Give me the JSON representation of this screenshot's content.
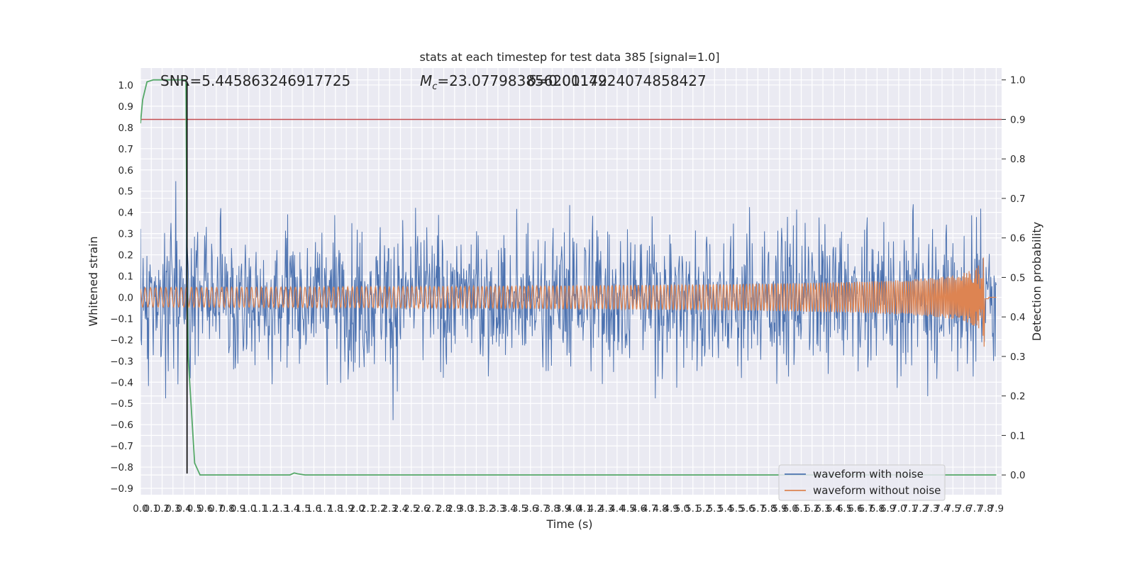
{
  "chart_data": {
    "type": "line",
    "title": "stats at each timestep for test data 385 [signal=1.0]",
    "xlabel": "Time (s)",
    "ylabel": "Whitened strain",
    "y2label": "Detection probability",
    "xlim": [
      0.0,
      7.95
    ],
    "ylim": [
      -0.93,
      1.08
    ],
    "y2lim": [
      -0.05,
      1.03
    ],
    "x_ticks": [
      "0.0",
      "0.1",
      "0.2",
      "0.3",
      "0.4",
      "0.5",
      "0.6",
      "0.7",
      "0.8",
      "0.9",
      "1.0",
      "1.1",
      "1.2",
      "1.3",
      "1.4",
      "1.5",
      "1.6",
      "1.7",
      "1.8",
      "1.9",
      "2.0",
      "2.1",
      "2.2",
      "2.3",
      "2.4",
      "2.5",
      "2.6",
      "2.7",
      "2.8",
      "2.9",
      "3.0",
      "3.1",
      "3.2",
      "3.3",
      "3.4",
      "3.5",
      "3.6",
      "3.7",
      "3.8",
      "3.9",
      "4.0",
      "4.1",
      "4.2",
      "4.3",
      "4.4",
      "4.5",
      "4.6",
      "4.7",
      "4.8",
      "4.9",
      "5.0",
      "5.1",
      "5.2",
      "5.3",
      "5.4",
      "5.5",
      "5.6",
      "5.7",
      "5.8",
      "5.9",
      "6.0",
      "6.1",
      "6.2",
      "6.3",
      "6.4",
      "6.5",
      "6.6",
      "6.7",
      "6.8",
      "6.9",
      "7.0",
      "7.1",
      "7.2",
      "7.3",
      "7.4",
      "7.5",
      "7.6",
      "7.7",
      "7.8",
      "7.9"
    ],
    "y_ticks": [
      "-0.9",
      "-0.8",
      "-0.7",
      "-0.6",
      "-0.5",
      "-0.4",
      "-0.3",
      "-0.2",
      "-0.1",
      "0.0",
      "0.1",
      "0.2",
      "0.3",
      "0.4",
      "0.5",
      "0.6",
      "0.7",
      "0.8",
      "0.9",
      "1.0"
    ],
    "y2_ticks": [
      "0.0",
      "0.1",
      "0.2",
      "0.3",
      "0.4",
      "0.5",
      "0.6",
      "0.7",
      "0.8",
      "0.9",
      "1.0"
    ],
    "annotations": {
      "snr": "SNR=5.445863246917725",
      "mc": "=23.077983856201172",
      "mc_symbol": "M",
      "mc_sub": "c",
      "overlap": "=0.0014924074858427"
    },
    "series": [
      {
        "name": "waveform with noise",
        "color": "#4c72b0",
        "axis": "left",
        "kind": "noise",
        "amplitude": 0.45
      },
      {
        "name": "waveform without noise",
        "color": "#dd8452",
        "axis": "left",
        "kind": "chirp",
        "peak_time": 7.8,
        "peak_amplitude": 0.27
      },
      {
        "name": "",
        "color": "#55a868",
        "axis": "right",
        "x": [
          0.0,
          0.02,
          0.06,
          0.12,
          0.2,
          0.3,
          0.38,
          0.42,
          0.43,
          0.44,
          0.5,
          0.55,
          1.3,
          1.38,
          1.42,
          1.45,
          1.52,
          7.9
        ],
        "values": [
          0.89,
          0.95,
          0.995,
          1.0,
          1.0,
          1.0,
          1.0,
          1.0,
          0.5,
          0.3,
          0.03,
          0.0,
          0.0,
          0.0,
          0.005,
          0.003,
          0.0,
          0.0
        ]
      }
    ],
    "threshold": {
      "value": 0.9,
      "axis": "right",
      "color": "#c44e52"
    },
    "vertical_marker": {
      "x": 0.43,
      "color": "#000000"
    },
    "legend_placement": "lower-right",
    "grid": true
  }
}
